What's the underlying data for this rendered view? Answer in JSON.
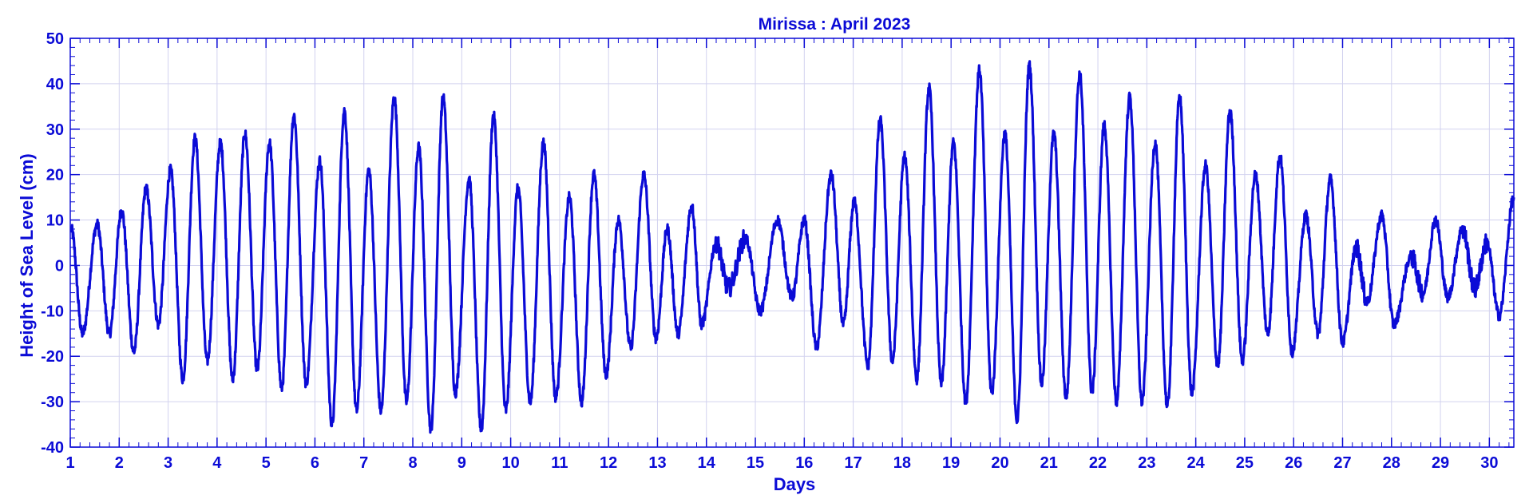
{
  "colors": {
    "primary": "#0b0bd6",
    "grid": "#d2d2ef",
    "background": "#ffffff"
  },
  "chart_data": {
    "type": "line",
    "title": "Mirissa : April 2023",
    "xlabel": "Days",
    "ylabel": "Height of Sea Level (cm)",
    "xlim": [
      1,
      30.5
    ],
    "ylim": [
      -40,
      50
    ],
    "xticks": [
      1,
      2,
      3,
      4,
      5,
      6,
      7,
      8,
      9,
      10,
      11,
      12,
      13,
      14,
      15,
      16,
      17,
      18,
      19,
      20,
      21,
      22,
      23,
      24,
      25,
      26,
      27,
      28,
      29,
      30
    ],
    "yticks": [
      -40,
      -30,
      -20,
      -10,
      0,
      10,
      20,
      30,
      40,
      50
    ],
    "grid": true,
    "series": [
      {
        "extrema": [
          [
            1.02,
            8
          ],
          [
            1.25,
            -15
          ],
          [
            1.55,
            9
          ],
          [
            1.8,
            -15
          ],
          [
            2.05,
            12
          ],
          [
            2.3,
            -19
          ],
          [
            2.55,
            17
          ],
          [
            2.8,
            -13
          ],
          [
            3.05,
            21
          ],
          [
            3.3,
            -25
          ],
          [
            3.55,
            28
          ],
          [
            3.8,
            -21
          ],
          [
            4.07,
            27
          ],
          [
            4.32,
            -25
          ],
          [
            4.57,
            29
          ],
          [
            4.82,
            -23
          ],
          [
            5.07,
            27
          ],
          [
            5.32,
            -27
          ],
          [
            5.57,
            33
          ],
          [
            5.82,
            -26
          ],
          [
            6.1,
            23
          ],
          [
            6.35,
            -35
          ],
          [
            6.6,
            34
          ],
          [
            6.85,
            -32
          ],
          [
            7.1,
            21
          ],
          [
            7.35,
            -32
          ],
          [
            7.62,
            37
          ],
          [
            7.87,
            -30
          ],
          [
            8.12,
            26
          ],
          [
            8.37,
            -36
          ],
          [
            8.62,
            37
          ],
          [
            8.87,
            -28
          ],
          [
            9.15,
            19
          ],
          [
            9.4,
            -36
          ],
          [
            9.65,
            33
          ],
          [
            9.9,
            -32
          ],
          [
            10.15,
            17
          ],
          [
            10.4,
            -30
          ],
          [
            10.67,
            27
          ],
          [
            10.92,
            -29
          ],
          [
            11.2,
            15
          ],
          [
            11.45,
            -30
          ],
          [
            11.7,
            20
          ],
          [
            11.95,
            -24
          ],
          [
            12.2,
            10
          ],
          [
            12.45,
            -18
          ],
          [
            12.72,
            20
          ],
          [
            12.97,
            -16
          ],
          [
            13.2,
            8
          ],
          [
            13.42,
            -15
          ],
          [
            13.7,
            13
          ],
          [
            13.9,
            -13
          ],
          [
            14.2,
            5
          ],
          [
            14.45,
            -5
          ],
          [
            14.8,
            6
          ],
          [
            15.1,
            -10
          ],
          [
            15.45,
            10
          ],
          [
            15.75,
            -7
          ],
          [
            16.0,
            10
          ],
          [
            16.25,
            -18
          ],
          [
            16.55,
            20
          ],
          [
            16.8,
            -13
          ],
          [
            17.02,
            14
          ],
          [
            17.3,
            -22
          ],
          [
            17.55,
            32
          ],
          [
            17.8,
            -21
          ],
          [
            18.05,
            24
          ],
          [
            18.3,
            -25
          ],
          [
            18.55,
            39
          ],
          [
            18.8,
            -26
          ],
          [
            19.05,
            27
          ],
          [
            19.3,
            -30
          ],
          [
            19.58,
            43
          ],
          [
            19.83,
            -28
          ],
          [
            20.1,
            29
          ],
          [
            20.35,
            -34
          ],
          [
            20.6,
            44
          ],
          [
            20.85,
            -26
          ],
          [
            21.1,
            29
          ],
          [
            21.35,
            -29
          ],
          [
            21.63,
            42
          ],
          [
            21.88,
            -28
          ],
          [
            22.13,
            31
          ],
          [
            22.38,
            -30
          ],
          [
            22.65,
            37
          ],
          [
            22.9,
            -30
          ],
          [
            23.17,
            27
          ],
          [
            23.42,
            -31
          ],
          [
            23.67,
            37
          ],
          [
            23.92,
            -28
          ],
          [
            24.2,
            22
          ],
          [
            24.45,
            -22
          ],
          [
            24.7,
            34
          ],
          [
            24.95,
            -21
          ],
          [
            25.22,
            20
          ],
          [
            25.47,
            -15
          ],
          [
            25.72,
            24
          ],
          [
            25.97,
            -19
          ],
          [
            26.25,
            11
          ],
          [
            26.5,
            -15
          ],
          [
            26.75,
            19
          ],
          [
            27.0,
            -17
          ],
          [
            27.28,
            4
          ],
          [
            27.5,
            -8
          ],
          [
            27.8,
            11
          ],
          [
            28.05,
            -13
          ],
          [
            28.4,
            2
          ],
          [
            28.65,
            -6
          ],
          [
            28.9,
            10
          ],
          [
            29.15,
            -7
          ],
          [
            29.45,
            8
          ],
          [
            29.7,
            -5
          ],
          [
            29.95,
            5
          ],
          [
            30.2,
            -11
          ],
          [
            30.5,
            15
          ]
        ]
      }
    ]
  }
}
